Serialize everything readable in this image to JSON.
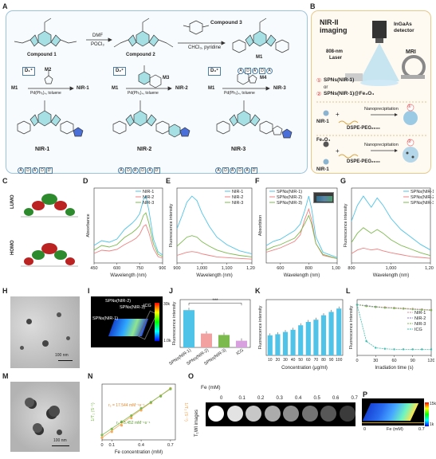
{
  "panel_labels": [
    "A",
    "B",
    "C",
    "D",
    "E",
    "F",
    "G",
    "H",
    "I",
    "J",
    "K",
    "L",
    "M",
    "N",
    "O",
    "P"
  ],
  "panel_a": {
    "compound1": "Compound 1",
    "compound2": "Compound 2",
    "compound3": "Compound 3",
    "reagent1a": "DMF",
    "reagent1b": "POCl₃",
    "reagent2": "CHCl₃, pyridine",
    "m1": "M1",
    "m2": "M2",
    "m3": "M3",
    "m4": "M4",
    "d1": "D₁⁺",
    "d2": "D₂⁺",
    "d3": "D₃⁺",
    "cat": "Pd(Ph₃)₄, toluene",
    "nir1": "NIR-1",
    "nir2": "NIR-2",
    "nir3": "NIR-3",
    "seq_m1": [
      "A",
      "D",
      "A'",
      "D",
      "A"
    ],
    "seq_nir1": [
      "A",
      "D",
      "A'",
      "D",
      "D'"
    ],
    "seq_nir2": [
      "A",
      "D",
      "A'",
      "D",
      "A",
      "D'"
    ],
    "seq_nir3": [
      "A",
      "D",
      "A'",
      "D",
      "A",
      "D'"
    ]
  },
  "panel_b": {
    "nir_title_1": "NIR-II",
    "nir_title_2": "imaging",
    "detector_1": "InGaAs",
    "detector_2": "detector",
    "laser_1": "808-nm",
    "laser_2": "Laser",
    "mri": "MRI",
    "opt1": "SPNs(NIR-1)",
    "or": "or",
    "opt2": "SPNs(NIR-1)@Fe₃O₄",
    "n1": "①",
    "n2": "②",
    "nanoprec": "Nanoprecipitation",
    "nir1": "NIR-1",
    "dspe1": "DSPE-PEG₂₀₀₀",
    "fe3o4": "Fe₃O₄",
    "nir1b": "NIR-1",
    "dspe2": "DSPE-PEG₂₀₀₀"
  },
  "panel_c": {
    "lumo": "LUMO",
    "homo": "HOMO"
  },
  "panel_h": {
    "scale": "100 nm"
  },
  "panel_m": {
    "scale": "100 nm"
  },
  "panel_i": {
    "labels": [
      "SPNs(NIR-2)",
      "SPNs(NIR-3)",
      "ICG",
      "SPNs(NIR-1)"
    ],
    "cb_max": "30k",
    "cb_min": "1.0k"
  },
  "panel_o": {
    "fe_label": "Fe (mM)",
    "concs": [
      "0",
      "0.1",
      "0.2",
      "0.3",
      "0.4",
      "0.5",
      "0.6",
      "0.7"
    ],
    "row_label": "T₁WI images"
  },
  "panel_p": {
    "axis_0": "0",
    "axis_label": "Fe (mM)",
    "axis_max": "0.7",
    "cb_max": "15k",
    "cb_min": "1k"
  },
  "chart_data": [
    {
      "id": "D",
      "type": "line",
      "xlabel": "Wavelength (nm)",
      "ylabel": "Absorbance",
      "xlim": [
        450,
        900
      ],
      "xticks": [
        "450",
        "600",
        "750",
        "900"
      ],
      "series": [
        {
          "name": "NIR-1",
          "color": "#4fc3e8",
          "x": [
            450,
            500,
            550,
            600,
            650,
            700,
            725,
            750,
            775,
            790,
            810,
            840,
            870,
            900
          ],
          "y": [
            0.22,
            0.28,
            0.26,
            0.3,
            0.42,
            0.5,
            0.55,
            0.62,
            0.8,
            0.84,
            0.66,
            0.3,
            0.14,
            0.1
          ]
        },
        {
          "name": "NIR-2",
          "color": "#f08080",
          "x": [
            450,
            500,
            550,
            600,
            650,
            700,
            725,
            750,
            775,
            790,
            810,
            840,
            870,
            900
          ],
          "y": [
            0.12,
            0.16,
            0.15,
            0.17,
            0.23,
            0.28,
            0.31,
            0.36,
            0.46,
            0.48,
            0.38,
            0.18,
            0.08,
            0.06
          ]
        },
        {
          "name": "NIR-3",
          "color": "#7cba4e",
          "x": [
            450,
            500,
            550,
            600,
            650,
            700,
            725,
            750,
            775,
            790,
            810,
            840,
            870,
            900
          ],
          "y": [
            0.16,
            0.22,
            0.2,
            0.23,
            0.32,
            0.38,
            0.42,
            0.47,
            0.6,
            0.63,
            0.5,
            0.24,
            0.11,
            0.08
          ]
        }
      ]
    },
    {
      "id": "E",
      "type": "line",
      "xlabel": "Wavelength (nm)",
      "ylabel": "Fluorescence intensity",
      "xlim": [
        900,
        1200
      ],
      "xticks": [
        "900",
        "1,000",
        "1,100",
        "1,200"
      ],
      "series": [
        {
          "name": "NIR-1",
          "color": "#4fc3e8",
          "x": [
            900,
            920,
            940,
            960,
            980,
            1000,
            1030,
            1060,
            1100,
            1150,
            1200
          ],
          "y": [
            0.45,
            0.62,
            0.8,
            0.88,
            0.82,
            0.66,
            0.48,
            0.34,
            0.24,
            0.16,
            0.12
          ]
        },
        {
          "name": "NIR-2",
          "color": "#f08080",
          "x": [
            900,
            920,
            940,
            960,
            980,
            1000,
            1030,
            1060,
            1100,
            1150,
            1200
          ],
          "y": [
            0.1,
            0.12,
            0.14,
            0.15,
            0.14,
            0.12,
            0.1,
            0.08,
            0.07,
            0.06,
            0.05
          ]
        },
        {
          "name": "NIR-3",
          "color": "#7cba4e",
          "x": [
            900,
            920,
            940,
            960,
            980,
            1000,
            1030,
            1060,
            1100,
            1150,
            1200
          ],
          "y": [
            0.22,
            0.28,
            0.34,
            0.36,
            0.34,
            0.28,
            0.22,
            0.17,
            0.13,
            0.1,
            0.08
          ]
        }
      ]
    },
    {
      "id": "F",
      "type": "line",
      "xlabel": "Wavelength (nm)",
      "ylabel": "Absorbtion",
      "xlim": [
        500,
        1000
      ],
      "xticks": [
        "600",
        "800",
        "1,000"
      ],
      "series": [
        {
          "name": "SPNs(NIR-1)",
          "color": "#4fc3e8",
          "x": [
            500,
            550,
            600,
            650,
            700,
            740,
            770,
            800,
            820,
            850,
            900,
            1000
          ],
          "y": [
            0.16,
            0.2,
            0.22,
            0.26,
            0.3,
            0.36,
            0.48,
            0.62,
            0.5,
            0.24,
            0.1,
            0.05
          ]
        },
        {
          "name": "SPNs(NIR-2)",
          "color": "#f08080",
          "x": [
            500,
            550,
            600,
            650,
            700,
            740,
            770,
            800,
            820,
            850,
            900,
            1000
          ],
          "y": [
            0.1,
            0.12,
            0.14,
            0.17,
            0.2,
            0.26,
            0.4,
            0.5,
            0.4,
            0.18,
            0.07,
            0.04
          ]
        },
        {
          "name": "SPNs(NIR-3)",
          "color": "#7cba4e",
          "x": [
            500,
            550,
            600,
            650,
            700,
            740,
            770,
            800,
            820,
            850,
            900,
            1000
          ],
          "y": [
            0.12,
            0.15,
            0.17,
            0.2,
            0.23,
            0.29,
            0.36,
            0.44,
            0.36,
            0.18,
            0.08,
            0.04
          ]
        }
      ]
    },
    {
      "id": "G",
      "type": "line",
      "xlabel": "Wavelength (nm)",
      "ylabel": "Fluorescence intensity",
      "xlim": [
        800,
        1200
      ],
      "xticks": [
        "800",
        "1,000",
        "1,200"
      ],
      "series": [
        {
          "name": "SPNs(NIR-1)",
          "color": "#4fc3e8",
          "x": [
            800,
            830,
            860,
            880,
            900,
            930,
            960,
            1000,
            1050,
            1100,
            1150,
            1200
          ],
          "y": [
            0.45,
            0.62,
            0.72,
            0.66,
            0.6,
            0.7,
            0.62,
            0.48,
            0.36,
            0.28,
            0.2,
            0.14
          ]
        },
        {
          "name": "SPNs(NIR-2)",
          "color": "#f08080",
          "x": [
            800,
            830,
            860,
            880,
            900,
            930,
            960,
            1000,
            1050,
            1100,
            1150,
            1200
          ],
          "y": [
            0.1,
            0.14,
            0.16,
            0.15,
            0.14,
            0.15,
            0.13,
            0.11,
            0.09,
            0.07,
            0.06,
            0.05
          ]
        },
        {
          "name": "SPNs(NIR-3)",
          "color": "#7cba4e",
          "x": [
            800,
            830,
            860,
            880,
            900,
            930,
            960,
            1000,
            1050,
            1100,
            1150,
            1200
          ],
          "y": [
            0.22,
            0.32,
            0.38,
            0.35,
            0.32,
            0.36,
            0.32,
            0.25,
            0.19,
            0.15,
            0.11,
            0.08
          ]
        }
      ]
    },
    {
      "id": "J",
      "type": "bar",
      "ylabel": "Fluorescence intensity",
      "categories": [
        "SPNs(NIR-1)",
        "SPNs(NIR-2)",
        "SPNs(NIR-3)",
        "ICG"
      ],
      "values": [
        0.78,
        0.29,
        0.26,
        0.14
      ],
      "colors": [
        "#4fc3e8",
        "#f3a0a0",
        "#7cba4e",
        "#d9a0e0"
      ],
      "annotation": "***",
      "ylim": [
        0,
        1
      ]
    },
    {
      "id": "K",
      "type": "bar",
      "xlabel": "Concentration (μg/ml)",
      "ylabel": "Fluorescence intensity",
      "categories": [
        "10",
        "20",
        "30",
        "40",
        "50",
        "60",
        "70",
        "80",
        "90",
        "100"
      ],
      "values": [
        0.36,
        0.38,
        0.42,
        0.46,
        0.54,
        0.6,
        0.64,
        0.72,
        0.78,
        0.84
      ],
      "ylim": [
        0,
        1
      ]
    },
    {
      "id": "L",
      "type": "line",
      "xlabel": "Irradiation time (s)",
      "ylabel": "Fluorescence intensity",
      "xlim": [
        0,
        120
      ],
      "xticks": [
        "0",
        "30",
        "60",
        "90",
        "120"
      ],
      "series": [
        {
          "name": "NIR-1",
          "color": "#e3879a",
          "x": [
            0,
            15,
            30,
            45,
            60,
            75,
            90,
            105,
            120
          ],
          "y": [
            1.0,
            0.98,
            0.96,
            0.95,
            0.94,
            0.93,
            0.92,
            0.91,
            0.9
          ]
        },
        {
          "name": "NIR-2",
          "color": "#8a7acb",
          "x": [
            0,
            15,
            30,
            45,
            60,
            75,
            90,
            105,
            120
          ],
          "y": [
            1.0,
            0.98,
            0.96,
            0.94,
            0.93,
            0.92,
            0.91,
            0.9,
            0.89
          ]
        },
        {
          "name": "NIR-3",
          "color": "#7cba4e",
          "x": [
            0,
            15,
            30,
            45,
            60,
            75,
            90,
            105,
            120
          ],
          "y": [
            1.0,
            0.97,
            0.95,
            0.94,
            0.93,
            0.92,
            0.91,
            0.9,
            0.89
          ]
        },
        {
          "name": "ICG",
          "color": "#3bbfb0",
          "x": [
            0,
            15,
            30,
            45,
            60,
            75,
            90,
            105,
            120
          ],
          "y": [
            1.0,
            0.28,
            0.15,
            0.13,
            0.12,
            0.12,
            0.12,
            0.12,
            0.12
          ]
        }
      ]
    },
    {
      "id": "N",
      "type": "scatter",
      "xlabel": "Fe concentration (mM)",
      "ylabel_left": "1/T₁ (S⁻¹)",
      "ylabel_right": "1/T₂ (S⁻¹)",
      "xticks": [
        "0",
        "0.1",
        "0.4",
        "0.7"
      ],
      "annotations": [
        "r₂ = 17.544 mM⁻¹s⁻¹",
        "r₁ = 5.452 mM⁻¹s⁻¹"
      ],
      "series": [
        {
          "name": "T2",
          "color": "#f6a95a",
          "x": [
            0,
            0.1,
            0.2,
            0.3,
            0.4,
            0.5,
            0.6,
            0.7
          ],
          "y": [
            0.5,
            1.9,
            3.4,
            5.1,
            6.9,
            8.6,
            10.3,
            12.0
          ]
        },
        {
          "name": "T1",
          "color": "#7cba4e",
          "x": [
            0,
            0.1,
            0.2,
            0.3,
            0.4,
            0.5,
            0.6,
            0.7
          ],
          "y": [
            0.4,
            0.9,
            1.5,
            2.0,
            2.6,
            3.1,
            3.6,
            4.2
          ]
        }
      ]
    }
  ]
}
